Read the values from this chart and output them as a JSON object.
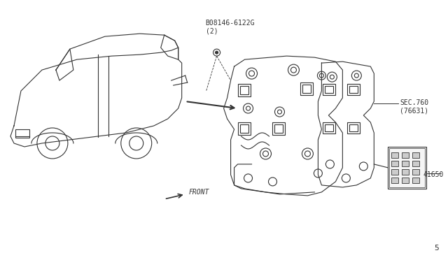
{
  "bg_color": "#ffffff",
  "line_color": "#333333",
  "label_08146": "B08146-6122G\n(2)",
  "label_sec760": "SEC.760\n(76631)",
  "label_41650": "41650",
  "label_front": "FRONT",
  "page_num": "5",
  "fig_width": 6.4,
  "fig_height": 3.72,
  "dpi": 100
}
